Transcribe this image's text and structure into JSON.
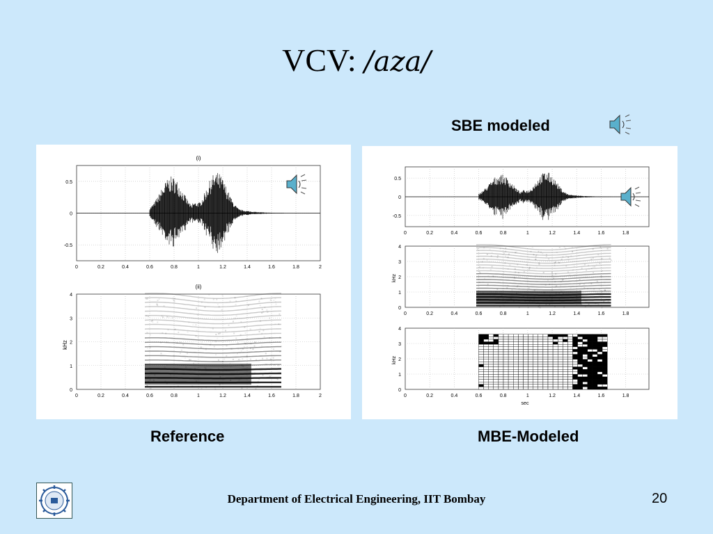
{
  "slide": {
    "title_prefix": "VCV: ",
    "title_ipa": "/aza/",
    "sbe_label": "SBE modeled",
    "caption_left": "Reference",
    "caption_right": "MBE-Modeled",
    "footer": "Department of Electrical Engineering, IIT Bombay",
    "page_number": "20"
  },
  "left_panel": {
    "wave_title": "(i)",
    "spec_title": "(ii)",
    "spec_ylabel": "kHz",
    "wave_yticks": [
      "0.5",
      "0",
      "-0.5"
    ],
    "spec_yticks": [
      "4",
      "3",
      "2",
      "1",
      "0"
    ],
    "xticks": [
      "0",
      "0.2",
      "0.4",
      "0.6",
      "0.8",
      "1",
      "1.2",
      "1.4",
      "1.6",
      "1.8",
      "2"
    ]
  },
  "right_panel": {
    "wave_yticks": [
      "0.5",
      "0",
      "-0.5"
    ],
    "spec_ylabel": "kHz",
    "spec_yticks": [
      "4",
      "3",
      "2",
      "1",
      "0"
    ],
    "mbe_ylabel": "kHz",
    "mbe_yticks": [
      "4",
      "3",
      "2",
      "1",
      "0"
    ],
    "mbe_xlabel": "sec",
    "xticks": [
      "0",
      "0.2",
      "0.4",
      "0.6",
      "0.8",
      "1",
      "1.2",
      "1.4",
      "1.6",
      "1.8"
    ]
  },
  "colors": {
    "background": "#cce8fb",
    "panel": "#ffffff"
  }
}
